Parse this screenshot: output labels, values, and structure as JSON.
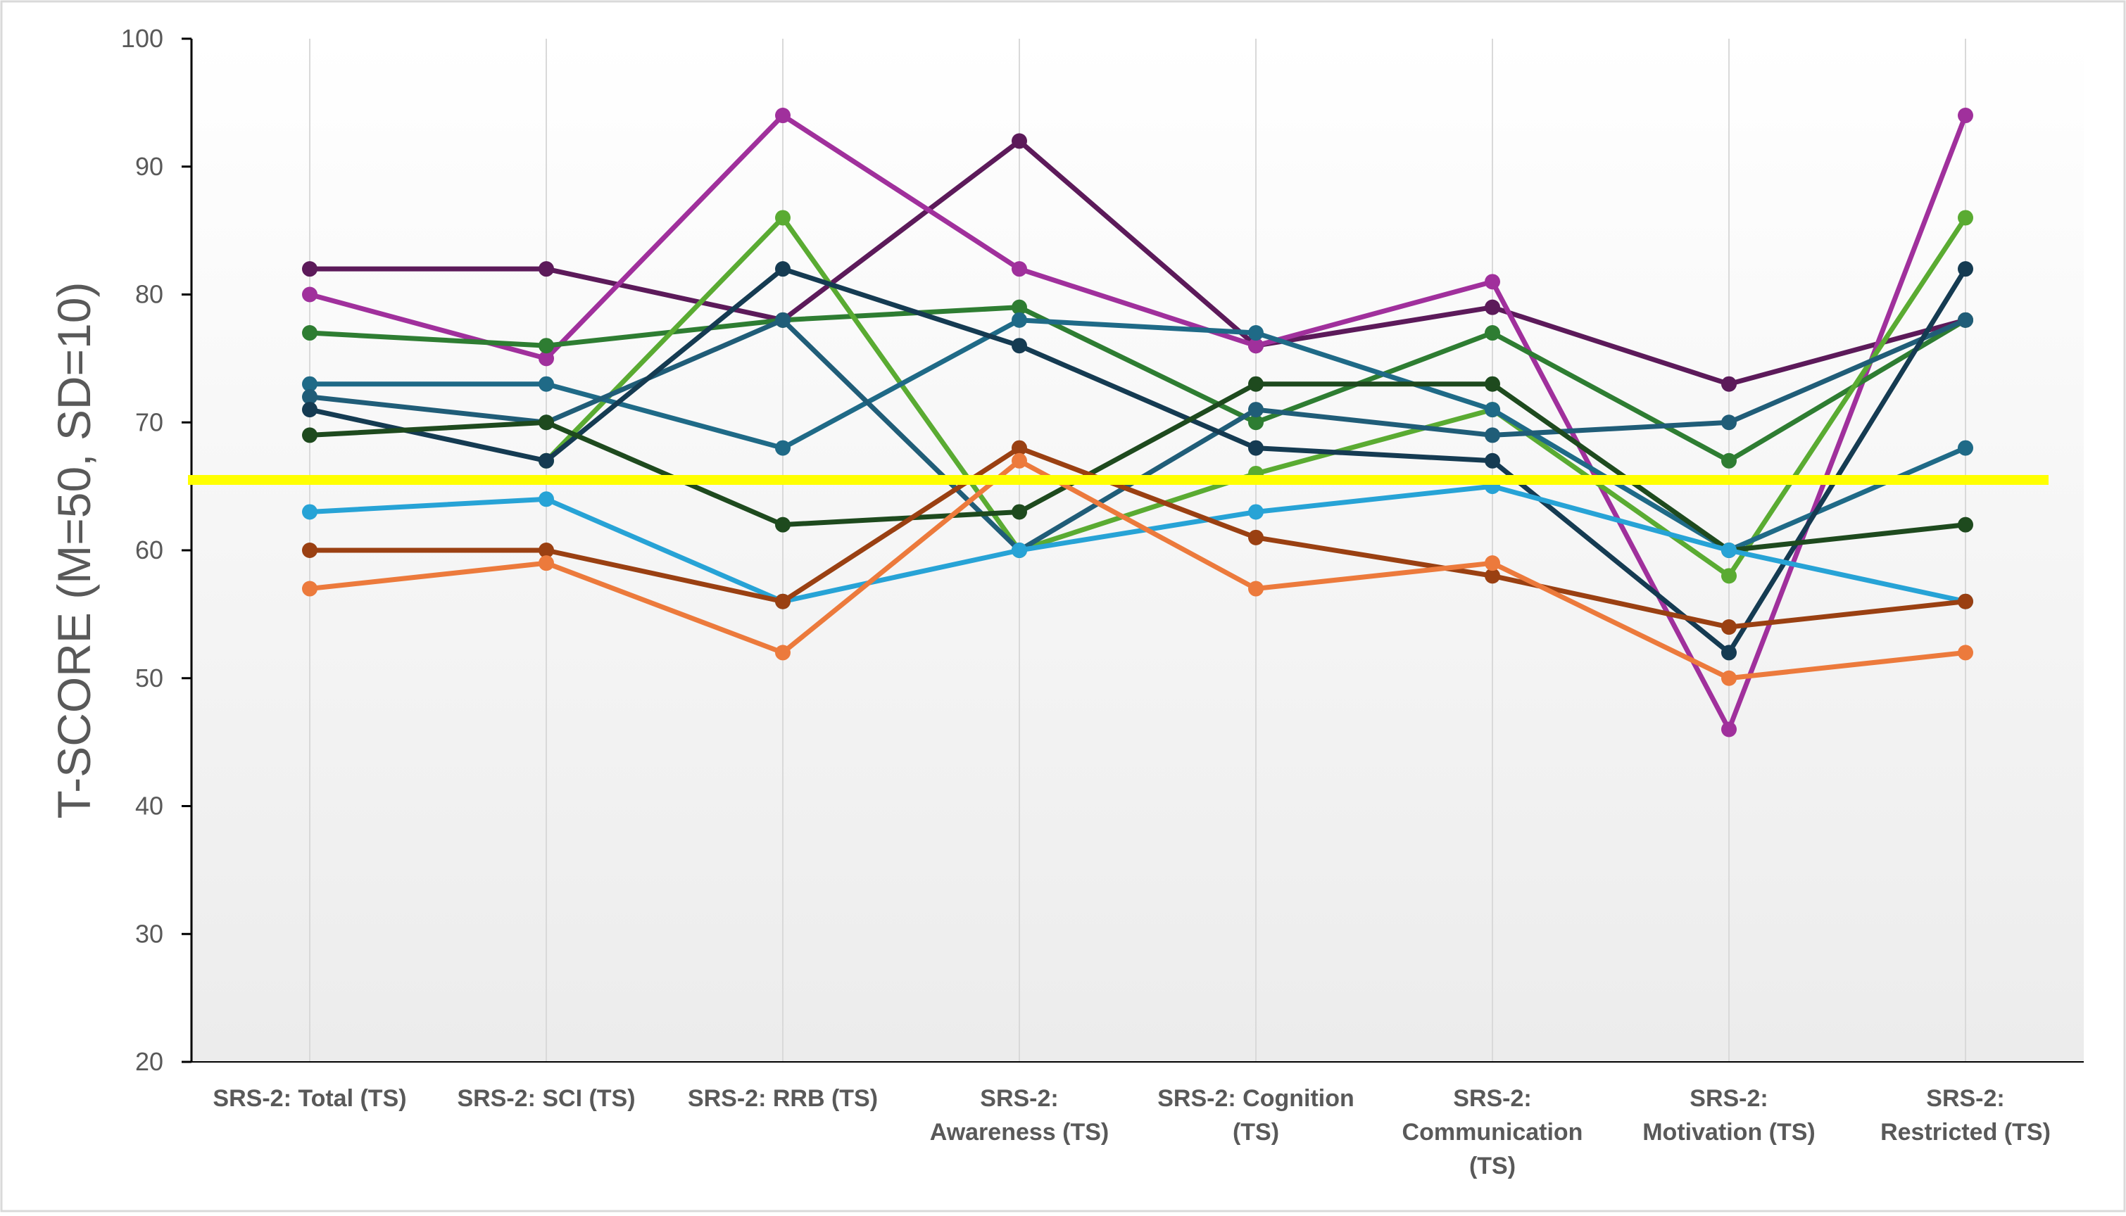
{
  "chart_data": {
    "type": "line",
    "title": "",
    "xlabel": "",
    "ylabel": "T-SCORE (M=50, SD=10)",
    "ylim": [
      20,
      100
    ],
    "yticks": [
      20,
      30,
      40,
      50,
      60,
      70,
      80,
      90,
      100
    ],
    "grid": "vertical gridlines at categories",
    "legend": "none",
    "categories": [
      [
        "SRS-2: Total (TS)"
      ],
      [
        "SRS-2: SCI (TS)"
      ],
      [
        "SRS-2: RRB (TS)"
      ],
      [
        "SRS-2:",
        "Awareness (TS)"
      ],
      [
        "SRS-2: Cognition",
        "(TS)"
      ],
      [
        "SRS-2:",
        "Communication",
        "(TS)"
      ],
      [
        "SRS-2:",
        "Motivation (TS)"
      ],
      [
        "SRS-2:",
        "Restricted (TS)"
      ]
    ],
    "threshold": {
      "value": 65.5,
      "color": "#ffff00"
    },
    "series": [
      {
        "color": "#5c1a5a",
        "values": [
          82,
          82,
          78,
          92,
          76,
          79,
          73,
          78
        ]
      },
      {
        "color": "#a0309c",
        "values": [
          80,
          75,
          94,
          82,
          76,
          81,
          46,
          94
        ]
      },
      {
        "color": "#2e7d32",
        "values": [
          77,
          76,
          78,
          79,
          70,
          77,
          67,
          78
        ]
      },
      {
        "color": "#5aab32",
        "values": [
          null,
          67,
          86,
          60,
          66,
          71,
          58,
          86
        ]
      },
      {
        "color": "#1f6a87",
        "values": [
          73,
          73,
          68,
          78,
          77,
          71,
          60,
          68
        ]
      },
      {
        "color": "#205d78",
        "values": [
          72,
          70,
          78,
          60,
          71,
          69,
          70,
          78
        ]
      },
      {
        "color": "#153b52",
        "values": [
          71,
          67,
          82,
          76,
          68,
          67,
          52,
          82
        ]
      },
      {
        "color": "#1e4a1e",
        "values": [
          69,
          70,
          62,
          63,
          73,
          73,
          60,
          62
        ]
      },
      {
        "color": "#27a3d6",
        "values": [
          63,
          64,
          56,
          60,
          63,
          65,
          60,
          56
        ]
      },
      {
        "color": "#9a4012",
        "values": [
          60,
          60,
          56,
          68,
          61,
          58,
          54,
          56
        ]
      },
      {
        "color": "#ec7a3c",
        "values": [
          57,
          59,
          52,
          67,
          57,
          59,
          50,
          52
        ]
      }
    ]
  }
}
